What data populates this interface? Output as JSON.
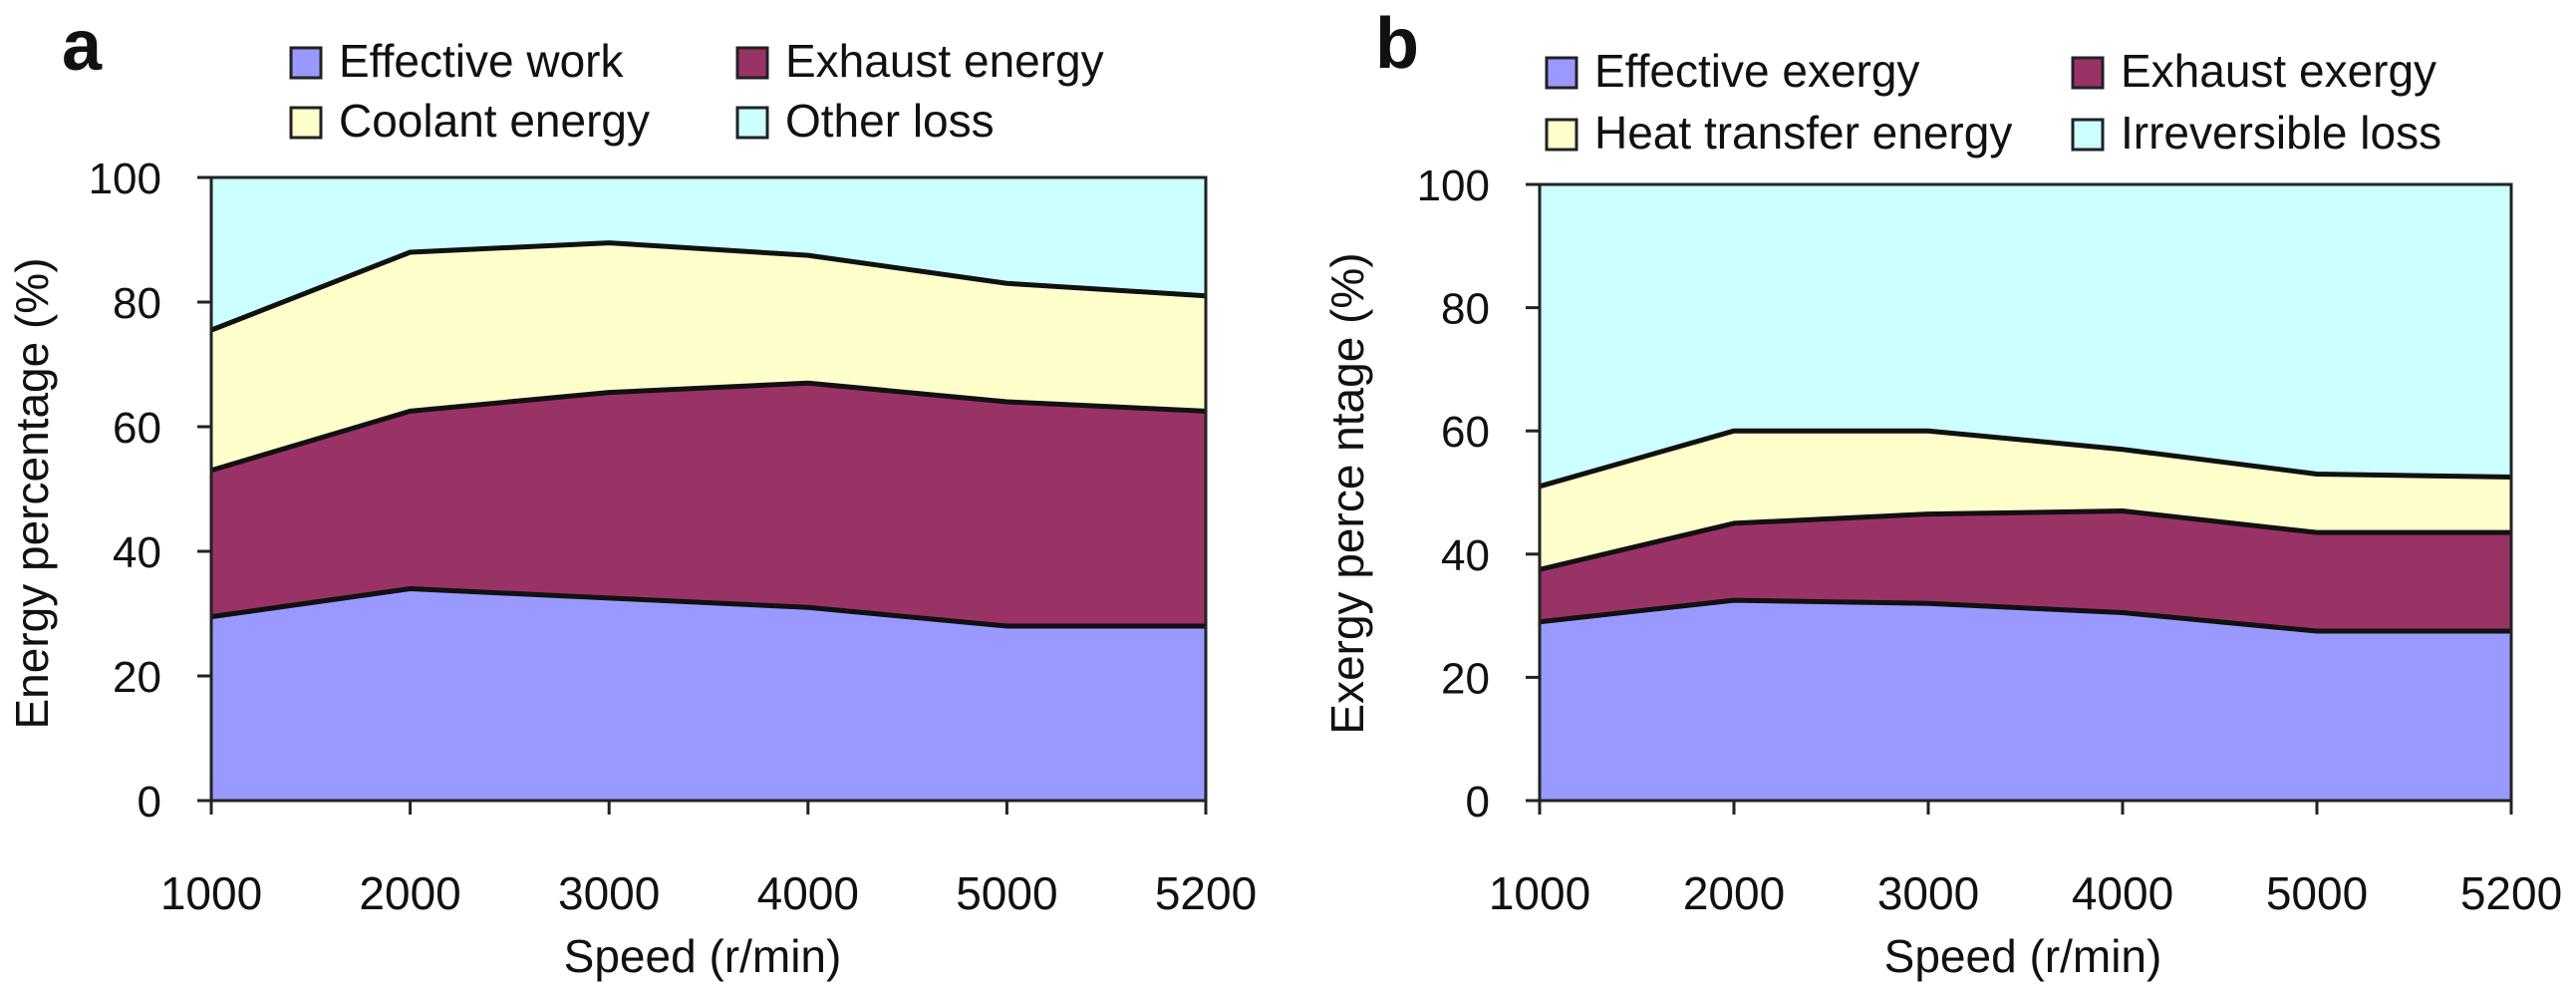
{
  "chart_data": [
    {
      "panel_label": "a",
      "type": "area",
      "stacked": true,
      "xlabel": "Speed (r/min)",
      "ylabel": "Energy percentage (%)",
      "categories": [
        "1000",
        "2000",
        "3000",
        "4000",
        "5000",
        "5200"
      ],
      "ylim": [
        0,
        100
      ],
      "yticks": [
        "0",
        "20",
        "40",
        "60",
        "80",
        "100"
      ],
      "legend_position": "top",
      "series": [
        {
          "name": "Effective work",
          "color": "#9a99ff",
          "values": [
            29.5,
            34,
            32.5,
            31,
            28,
            28
          ]
        },
        {
          "name": "Exhaust energy",
          "color": "#993366",
          "values": [
            23.5,
            28.5,
            33,
            36,
            36,
            34.5
          ]
        },
        {
          "name": "Coolant energy",
          "color": "#ffffcc",
          "values": [
            22.5,
            25.5,
            24,
            20.5,
            19,
            18.5
          ]
        },
        {
          "name": "Other loss",
          "color": "#ccffff",
          "values": [
            24.5,
            12,
            10.5,
            12.5,
            17,
            19
          ]
        }
      ]
    },
    {
      "panel_label": "b",
      "type": "area",
      "stacked": true,
      "xlabel": "Speed (r/min)",
      "ylabel": "Exergy perce ntage (%)",
      "categories": [
        "1000",
        "2000",
        "3000",
        "4000",
        "5000",
        "5200"
      ],
      "ylim": [
        0,
        100
      ],
      "yticks": [
        "0",
        "20",
        "40",
        "60",
        "80",
        "100"
      ],
      "legend_position": "top",
      "series": [
        {
          "name": "Effective exergy",
          "color": "#9a99ff",
          "values": [
            29,
            32.5,
            32,
            30.5,
            27.5,
            27.5
          ]
        },
        {
          "name": "Exhaust exergy",
          "color": "#993366",
          "values": [
            8.5,
            12.5,
            14.5,
            16.5,
            16,
            16
          ]
        },
        {
          "name": "Heat transfer energy",
          "color": "#ffffcc",
          "values": [
            13.5,
            15,
            13.5,
            10,
            9.5,
            9
          ]
        },
        {
          "name": "Irreversible loss",
          "color": "#ccffff",
          "values": [
            49,
            40,
            40,
            43,
            47,
            47.5
          ]
        }
      ]
    }
  ]
}
